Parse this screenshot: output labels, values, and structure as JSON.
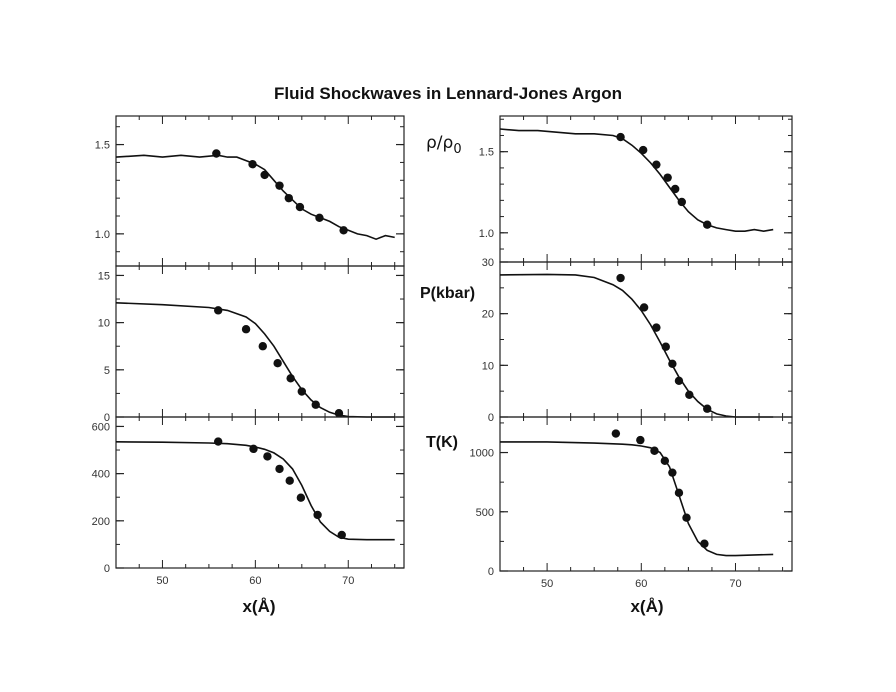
{
  "figure": {
    "title": "Fluid Shockwaves in Lennard-Jones Argon",
    "row_labels": [
      "ρ/ρ",
      "P(kbar)",
      "T(K)"
    ],
    "row_label_subscript": "0",
    "x_axis_label": "x(Å)"
  },
  "colors": {
    "ink": "#111111",
    "frame": "#222222",
    "background": "#ffffff"
  },
  "chart_data": [
    {
      "type": "line",
      "panel": "left-top",
      "quantity": "density ratio",
      "xlim": [
        45,
        76
      ],
      "ylim": [
        0.82,
        1.66
      ],
      "yticks": [
        1.0,
        1.5
      ],
      "ytick_labels": [
        "1.0",
        "1.5"
      ],
      "y_minor": 0.1,
      "xticks": [
        50,
        60,
        70
      ],
      "curve": [
        [
          45,
          1.43
        ],
        [
          48,
          1.44
        ],
        [
          50,
          1.43
        ],
        [
          52,
          1.44
        ],
        [
          54,
          1.43
        ],
        [
          56,
          1.44
        ],
        [
          57,
          1.43
        ],
        [
          58,
          1.43
        ],
        [
          59,
          1.41
        ],
        [
          60,
          1.39
        ],
        [
          61,
          1.36
        ],
        [
          62,
          1.3
        ],
        [
          63,
          1.24
        ],
        [
          64,
          1.19
        ],
        [
          65,
          1.14
        ],
        [
          66,
          1.11
        ],
        [
          67,
          1.09
        ],
        [
          68,
          1.07
        ],
        [
          69,
          1.04
        ],
        [
          70,
          1.02
        ],
        [
          71,
          1.0
        ],
        [
          72,
          0.99
        ],
        [
          73,
          0.97
        ],
        [
          74,
          0.99
        ],
        [
          75,
          0.98
        ]
      ],
      "points": [
        [
          55.8,
          1.45
        ],
        [
          59.7,
          1.39
        ],
        [
          61,
          1.33
        ],
        [
          62.6,
          1.27
        ],
        [
          63.6,
          1.2
        ],
        [
          64.8,
          1.15
        ],
        [
          66.9,
          1.09
        ],
        [
          69.5,
          1.02
        ]
      ]
    },
    {
      "type": "line",
      "panel": "right-top",
      "quantity": "density ratio",
      "xlim": [
        45,
        76
      ],
      "ylim": [
        0.82,
        1.72
      ],
      "yticks": [
        1.0,
        1.5
      ],
      "ytick_labels": [
        "1.0",
        "1.5"
      ],
      "y_minor": 0.1,
      "xticks": [
        50,
        60,
        70
      ],
      "curve": [
        [
          45,
          1.64
        ],
        [
          47,
          1.63
        ],
        [
          49,
          1.63
        ],
        [
          51,
          1.62
        ],
        [
          53,
          1.61
        ],
        [
          55,
          1.61
        ],
        [
          57,
          1.6
        ],
        [
          58,
          1.58
        ],
        [
          59,
          1.54
        ],
        [
          60,
          1.49
        ],
        [
          61,
          1.43
        ],
        [
          62,
          1.36
        ],
        [
          63,
          1.28
        ],
        [
          64,
          1.2
        ],
        [
          65,
          1.13
        ],
        [
          66,
          1.08
        ],
        [
          67,
          1.05
        ],
        [
          68,
          1.03
        ],
        [
          69,
          1.02
        ],
        [
          70,
          1.01
        ],
        [
          71,
          1.01
        ],
        [
          72,
          1.02
        ],
        [
          73,
          1.01
        ],
        [
          74,
          1.02
        ]
      ],
      "points": [
        [
          57.8,
          1.59
        ],
        [
          60.2,
          1.51
        ],
        [
          61.6,
          1.42
        ],
        [
          62.8,
          1.34
        ],
        [
          63.6,
          1.27
        ],
        [
          64.3,
          1.19
        ],
        [
          67,
          1.05
        ]
      ]
    },
    {
      "type": "line",
      "panel": "left-middle",
      "quantity": "pressure",
      "xlim": [
        45,
        76
      ],
      "ylim": [
        0,
        16
      ],
      "yticks": [
        0,
        5,
        10,
        15
      ],
      "ytick_labels": [
        "0",
        "5",
        "10",
        "15"
      ],
      "y_minor": 2.5,
      "xticks": [
        50,
        60,
        70
      ],
      "curve": [
        [
          45,
          12.1
        ],
        [
          50,
          11.9
        ],
        [
          55,
          11.6
        ],
        [
          57,
          11.3
        ],
        [
          59,
          10.6
        ],
        [
          60,
          9.9
        ],
        [
          61,
          8.8
        ],
        [
          62,
          7.5
        ],
        [
          63,
          5.9
        ],
        [
          64,
          4.3
        ],
        [
          65,
          2.9
        ],
        [
          66,
          1.8
        ],
        [
          67,
          1.0
        ],
        [
          68,
          0.5
        ],
        [
          69,
          0.2
        ],
        [
          70,
          0.05
        ],
        [
          72,
          0.0
        ],
        [
          75,
          0.0
        ]
      ],
      "points": [
        [
          56,
          11.3
        ],
        [
          59,
          9.3
        ],
        [
          60.8,
          7.5
        ],
        [
          62.4,
          5.7
        ],
        [
          63.8,
          4.1
        ],
        [
          65,
          2.7
        ],
        [
          66.5,
          1.3
        ],
        [
          69,
          0.4
        ]
      ]
    },
    {
      "type": "line",
      "panel": "right-middle",
      "quantity": "pressure",
      "xlim": [
        45,
        76
      ],
      "ylim": [
        0,
        30
      ],
      "yticks": [
        0,
        10,
        20,
        30
      ],
      "ytick_labels": [
        "0",
        "10",
        "20",
        "30"
      ],
      "y_minor": 5,
      "xticks": [
        50,
        60,
        70
      ],
      "curve": [
        [
          45,
          27.5
        ],
        [
          50,
          27.6
        ],
        [
          53,
          27.5
        ],
        [
          55,
          27.0
        ],
        [
          57,
          25.6
        ],
        [
          58,
          24.5
        ],
        [
          59,
          22.8
        ],
        [
          60,
          20.6
        ],
        [
          61,
          17.8
        ],
        [
          62,
          14.5
        ],
        [
          63,
          11.0
        ],
        [
          64,
          7.7
        ],
        [
          65,
          5.0
        ],
        [
          66,
          3.0
        ],
        [
          67,
          1.5
        ],
        [
          68,
          0.6
        ],
        [
          69,
          0.2
        ],
        [
          70,
          0.0
        ],
        [
          74,
          0.0
        ]
      ],
      "points": [
        [
          57.8,
          26.9
        ],
        [
          60.3,
          21.2
        ],
        [
          61.6,
          17.3
        ],
        [
          62.6,
          13.6
        ],
        [
          63.3,
          10.3
        ],
        [
          64,
          7.0
        ],
        [
          65.1,
          4.3
        ],
        [
          67,
          1.6
        ]
      ]
    },
    {
      "type": "line",
      "panel": "left-bottom",
      "quantity": "temperature",
      "xlim": [
        45,
        76
      ],
      "ylim": [
        0,
        640
      ],
      "yticks": [
        0,
        200,
        400,
        600
      ],
      "ytick_labels": [
        "0",
        "200",
        "400",
        "600"
      ],
      "y_minor": 100,
      "xticks": [
        50,
        60,
        70
      ],
      "xtick_labels": [
        "50",
        "60",
        "70"
      ],
      "curve": [
        [
          45,
          535
        ],
        [
          50,
          533
        ],
        [
          55,
          530
        ],
        [
          57,
          527
        ],
        [
          59,
          520
        ],
        [
          60,
          513
        ],
        [
          61,
          503
        ],
        [
          62,
          488
        ],
        [
          63,
          462
        ],
        [
          64,
          420
        ],
        [
          65,
          350
        ],
        [
          66,
          265
        ],
        [
          67,
          195
        ],
        [
          68,
          155
        ],
        [
          69,
          130
        ],
        [
          70,
          122
        ],
        [
          72,
          120
        ],
        [
          74,
          120
        ],
        [
          75,
          120
        ]
      ],
      "points": [
        [
          56,
          536
        ],
        [
          59.8,
          505
        ],
        [
          61.3,
          473
        ],
        [
          62.6,
          420
        ],
        [
          63.7,
          370
        ],
        [
          64.9,
          298
        ],
        [
          66.7,
          225
        ],
        [
          69.3,
          140
        ]
      ]
    },
    {
      "type": "line",
      "panel": "right-bottom",
      "quantity": "temperature",
      "xlim": [
        45,
        76
      ],
      "ylim": [
        0,
        1300
      ],
      "yticks": [
        0,
        500,
        1000
      ],
      "ytick_labels": [
        "0",
        "500",
        "1000"
      ],
      "y_minor": 250,
      "xticks": [
        50,
        60,
        70
      ],
      "xtick_labels": [
        "50",
        "60",
        "70"
      ],
      "curve": [
        [
          45,
          1090
        ],
        [
          50,
          1090
        ],
        [
          55,
          1080
        ],
        [
          58,
          1070
        ],
        [
          59,
          1065
        ],
        [
          60,
          1055
        ],
        [
          61,
          1040
        ],
        [
          62,
          1000
        ],
        [
          63,
          880
        ],
        [
          64,
          640
        ],
        [
          65,
          400
        ],
        [
          66,
          250
        ],
        [
          67,
          175
        ],
        [
          68,
          140
        ],
        [
          69,
          130
        ],
        [
          70,
          130
        ],
        [
          74,
          140
        ]
      ],
      "points": [
        [
          57.3,
          1160
        ],
        [
          59.9,
          1105
        ],
        [
          61.4,
          1015
        ],
        [
          62.5,
          930
        ],
        [
          63.3,
          830
        ],
        [
          64,
          660
        ],
        [
          64.8,
          450
        ],
        [
          66.7,
          230
        ]
      ]
    }
  ]
}
